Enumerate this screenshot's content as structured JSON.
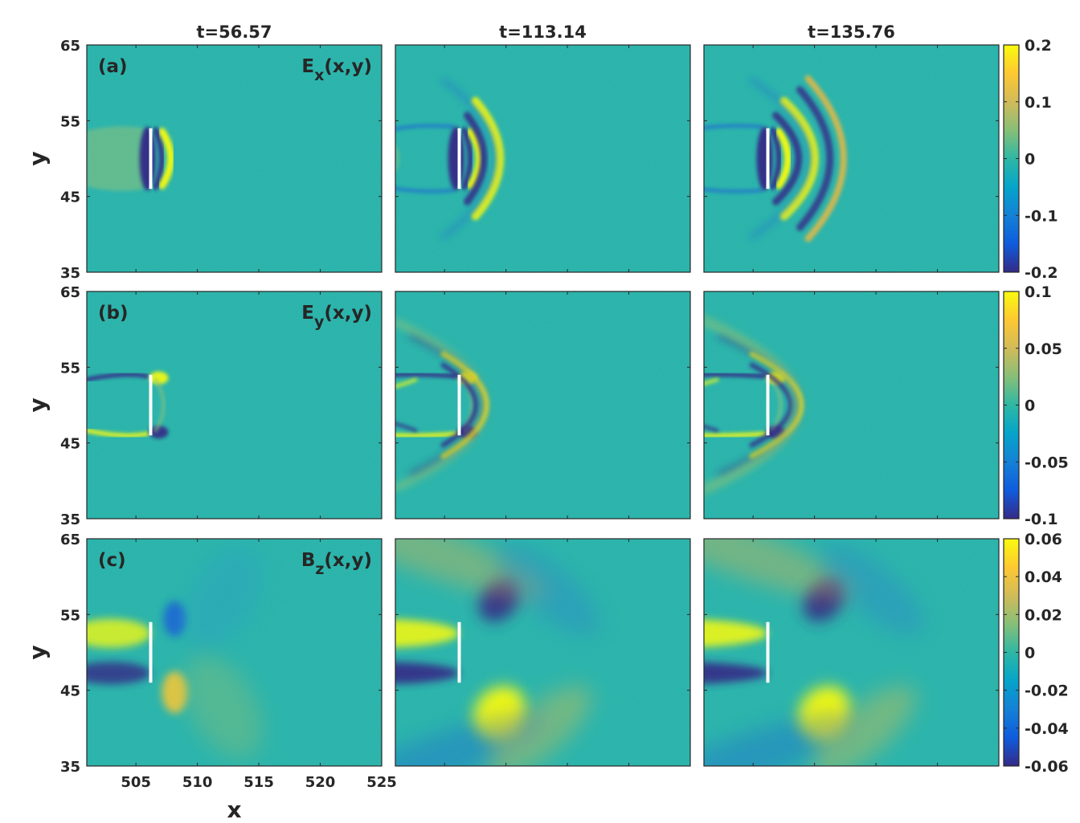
{
  "chart_data": {
    "type": "heatmap",
    "colormap": "parula",
    "xlabel": "x",
    "ylabel": "y",
    "xlim": [
      501,
      525
    ],
    "ylim": [
      35,
      65
    ],
    "x_ticks": [
      "505",
      "510",
      "515",
      "520",
      "525"
    ],
    "x_tick_values": [
      505,
      510,
      515,
      520,
      525
    ],
    "y_ticks": [
      "35",
      "45",
      "55",
      "65"
    ],
    "y_tick_values": [
      35,
      45,
      55,
      65
    ],
    "columns": [
      {
        "label": "t=56.57",
        "time": 56.57,
        "plate_x": 506.2,
        "front_x": 507.0
      },
      {
        "label": "t=113.14",
        "time": 113.14,
        "plate_x": 506.2,
        "front_x": 508.9
      },
      {
        "label": "t=135.76",
        "time": 135.76,
        "plate_x": 506.2,
        "front_x": 509.9
      }
    ],
    "plate": {
      "x": 506.2,
      "y_min": 46,
      "y_max": 54,
      "color": "#ffffff"
    },
    "rows": [
      {
        "panel_label": "(a)",
        "field_main": "E",
        "field_sub": "x",
        "field_suffix": "(x,y)",
        "clim": [
          -0.2,
          0.2
        ],
        "colorbar_ticks": [
          "0.2",
          "0.1",
          "0",
          "-0.1",
          "-0.2"
        ],
        "colorbar_values": [
          0.2,
          0.1,
          0,
          -0.1,
          -0.2
        ]
      },
      {
        "panel_label": "(b)",
        "field_main": "E",
        "field_sub": "y",
        "field_suffix": "(x,y)",
        "clim": [
          -0.1,
          0.1
        ],
        "colorbar_ticks": [
          "0.1",
          "0.05",
          "0",
          "-0.05",
          "-0.1"
        ],
        "colorbar_values": [
          0.1,
          0.05,
          0,
          -0.05,
          -0.1
        ]
      },
      {
        "panel_label": "(c)",
        "field_main": "B",
        "field_sub": "z",
        "field_suffix": "(x,y)",
        "clim": [
          -0.06,
          0.06
        ],
        "colorbar_ticks": [
          "0.06",
          "0.04",
          "0.02",
          "0",
          "-0.02",
          "-0.04",
          "-0.06"
        ],
        "colorbar_values": [
          0.06,
          0.04,
          0.02,
          0,
          -0.02,
          -0.04,
          -0.06
        ]
      }
    ],
    "colors": {
      "background": "#23b1a5",
      "low": "#352a87",
      "high": "#f9fb0e",
      "axis": "#262626"
    }
  }
}
